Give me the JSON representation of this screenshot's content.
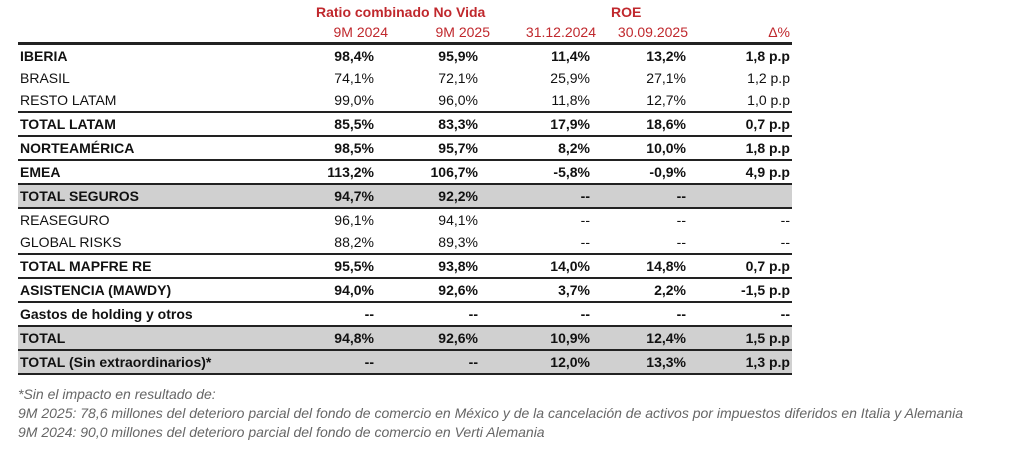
{
  "header": {
    "group_ratio": "Ratio combinado No Vida",
    "group_roe": "ROE",
    "columns": [
      "9M 2024",
      "9M 2025",
      "31.12.2024",
      "30.09.2025",
      "Δ%"
    ]
  },
  "rows": [
    {
      "label": "IBERIA",
      "values": [
        "98,4%",
        "95,9%",
        "11,4%",
        "13,2%",
        "1,8 p.p"
      ],
      "bold": true,
      "gray": false
    },
    {
      "label": "BRASIL",
      "values": [
        "74,1%",
        "72,1%",
        "25,9%",
        "27,1%",
        "1,2 p.p"
      ],
      "bold": false,
      "gray": false
    },
    {
      "label": "RESTO LATAM",
      "values": [
        "99,0%",
        "96,0%",
        "11,8%",
        "12,7%",
        "1,0 p.p"
      ],
      "bold": false,
      "gray": false
    },
    {
      "label": "TOTAL LATAM",
      "values": [
        "85,5%",
        "83,3%",
        "17,9%",
        "18,6%",
        "0,7 p.p"
      ],
      "bold": true,
      "gray": false
    },
    {
      "label": "NORTEAMÉRICA",
      "values": [
        "98,5%",
        "95,7%",
        "8,2%",
        "10,0%",
        "1,8 p.p"
      ],
      "bold": true,
      "gray": false
    },
    {
      "label": "EMEA",
      "values": [
        "113,2%",
        "106,7%",
        "-5,8%",
        "-0,9%",
        "4,9 p.p"
      ],
      "bold": true,
      "gray": false
    },
    {
      "label": "TOTAL SEGUROS",
      "values": [
        "94,7%",
        "92,2%",
        "--",
        "--",
        ""
      ],
      "bold": true,
      "gray": true
    },
    {
      "label": "REASEGURO",
      "values": [
        "96,1%",
        "94,1%",
        "--",
        "--",
        "--"
      ],
      "bold": false,
      "gray": false
    },
    {
      "label": "GLOBAL RISKS",
      "values": [
        "88,2%",
        "89,3%",
        "--",
        "--",
        "--"
      ],
      "bold": false,
      "gray": false
    },
    {
      "label": "TOTAL MAPFRE RE",
      "values": [
        "95,5%",
        "93,8%",
        "14,0%",
        "14,8%",
        "0,7 p.p"
      ],
      "bold": true,
      "gray": false
    },
    {
      "label": "ASISTENCIA (MAWDY)",
      "values": [
        "94,0%",
        "92,6%",
        "3,7%",
        "2,2%",
        "-1,5 p.p"
      ],
      "bold": true,
      "gray": false
    },
    {
      "label": "Gastos de holding y otros",
      "values": [
        "--",
        "--",
        "--",
        "--",
        "--"
      ],
      "bold": true,
      "gray": false
    },
    {
      "label": "TOTAL",
      "values": [
        "94,8%",
        "92,6%",
        "10,9%",
        "12,4%",
        "1,5 p.p"
      ],
      "bold": true,
      "gray": true
    },
    {
      "label": "TOTAL (Sin extraordinarios)*",
      "values": [
        "--",
        "--",
        "12,0%",
        "13,3%",
        "1,3 p.p"
      ],
      "bold": true,
      "gray": true
    }
  ],
  "notes": [
    "*Sin el impacto en resultado de:",
    "9M 2025: 78,6 millones del deterioro parcial del fondo de comercio en México y de la cancelación de activos por impuestos diferidos en Italia y Alemania",
    "9M 2024: 90,0 millones del deterioro parcial del fondo de comercio en Verti Alemania"
  ]
}
